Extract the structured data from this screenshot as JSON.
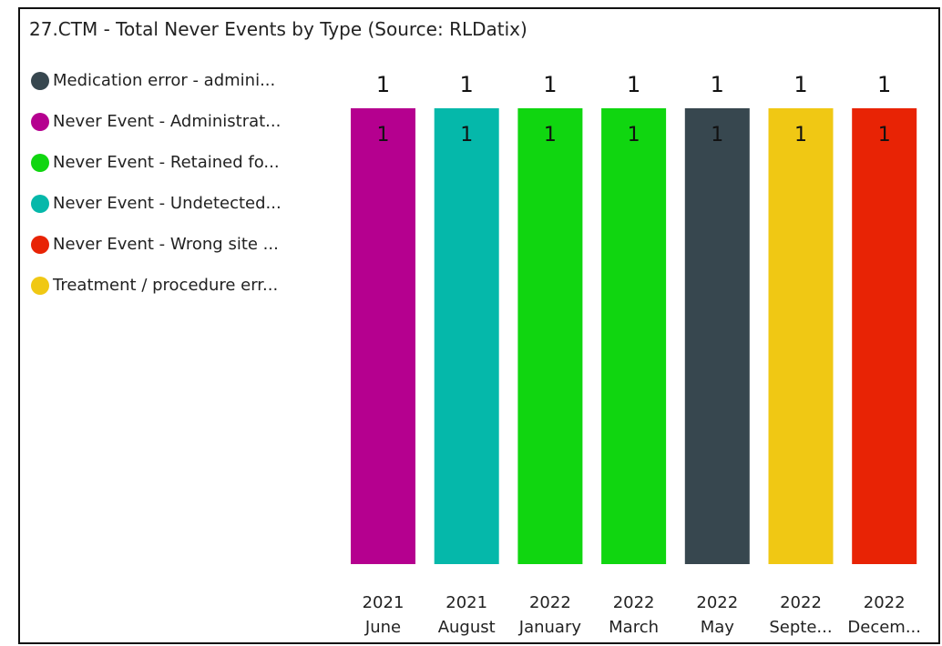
{
  "title": "27.CTM - Total Never Events by Type (Source: RLDatix)",
  "legend": [
    {
      "label": "Medication error - admini...",
      "color": "#37474f"
    },
    {
      "label": "Never Event - Administrat...",
      "color": "#b5008f"
    },
    {
      "label": "Never Event - Retained fo...",
      "color": "#10d610"
    },
    {
      "label": "Never Event - Undetected...",
      "color": "#05b8aa"
    },
    {
      "label": "Never Event - Wrong site ...",
      "color": "#e82305"
    },
    {
      "label": "Treatment / procedure err...",
      "color": "#f0c814"
    }
  ],
  "chart_data": {
    "type": "bar",
    "stacked": true,
    "categories": [
      {
        "year": "2021",
        "month": "June"
      },
      {
        "year": "2021",
        "month": "August"
      },
      {
        "year": "2022",
        "month": "January"
      },
      {
        "year": "2022",
        "month": "March"
      },
      {
        "year": "2022",
        "month": "May"
      },
      {
        "year": "2022",
        "month": "Septe..."
      },
      {
        "year": "2022",
        "month": "Decem..."
      }
    ],
    "series": [
      {
        "name": "Medication error - admini...",
        "color": "#37474f",
        "values": [
          0,
          0,
          0,
          0,
          1,
          0,
          0
        ]
      },
      {
        "name": "Never Event - Administrat...",
        "color": "#b5008f",
        "values": [
          1,
          0,
          0,
          0,
          0,
          0,
          0
        ]
      },
      {
        "name": "Never Event - Retained fo...",
        "color": "#10d610",
        "values": [
          0,
          0,
          1,
          1,
          0,
          0,
          0
        ]
      },
      {
        "name": "Never Event - Undetected...",
        "color": "#05b8aa",
        "values": [
          0,
          1,
          0,
          0,
          0,
          0,
          0
        ]
      },
      {
        "name": "Never Event - Wrong site ...",
        "color": "#e82305",
        "values": [
          0,
          0,
          0,
          0,
          0,
          0,
          1
        ]
      },
      {
        "name": "Treatment / procedure err...",
        "color": "#f0c814",
        "values": [
          0,
          0,
          0,
          0,
          0,
          1,
          0
        ]
      }
    ],
    "totals": [
      1,
      1,
      1,
      1,
      1,
      1,
      1
    ],
    "ylim": [
      0,
      1
    ],
    "grid": false,
    "legend_position": "left"
  }
}
